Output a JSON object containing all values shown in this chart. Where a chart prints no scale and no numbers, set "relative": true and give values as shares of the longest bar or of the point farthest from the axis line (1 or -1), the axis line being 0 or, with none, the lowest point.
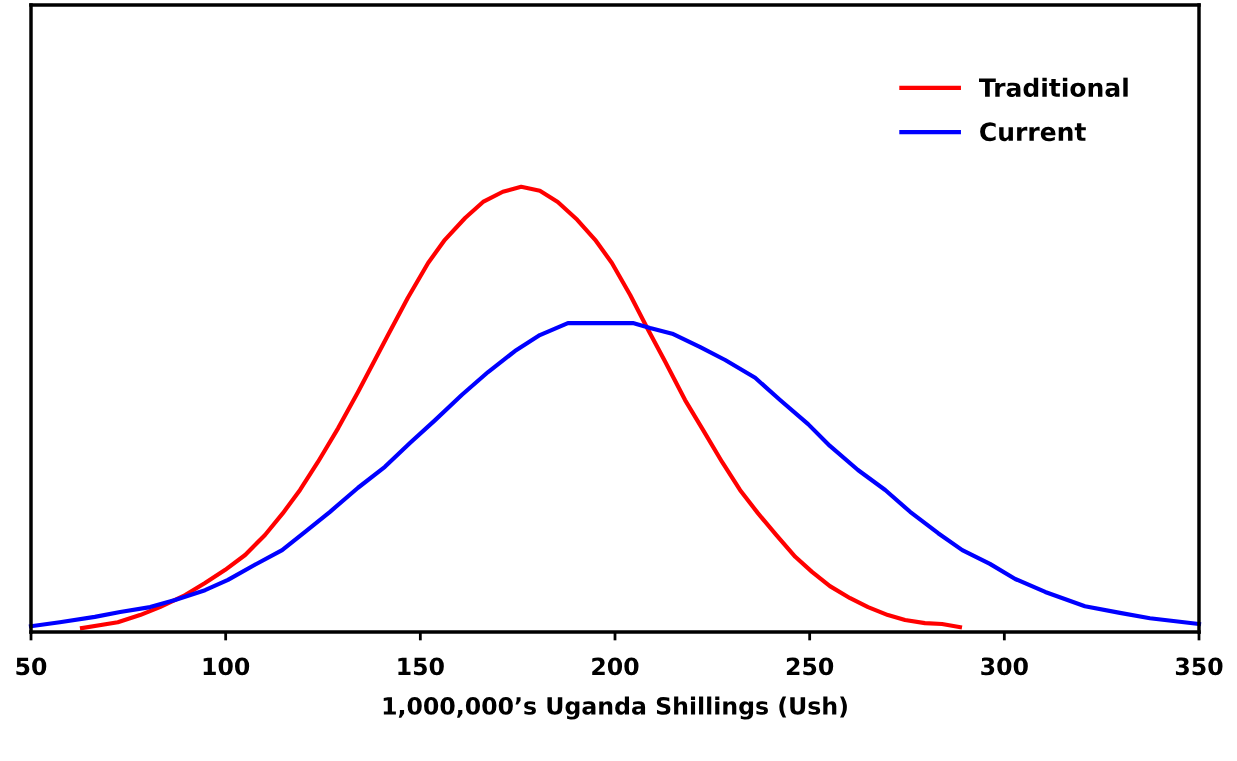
{
  "chart_data": {
    "type": "line",
    "xlabel": "1,000,000’s Uganda Shillings (Ush)",
    "relative": true,
    "xlim": [
      50,
      350
    ],
    "xticks": [
      50,
      100,
      150,
      200,
      250,
      300,
      350
    ],
    "legend": "top right",
    "grid": false,
    "marker": "none",
    "line_style": "solid",
    "series": [
      {
        "name": "Traditional",
        "color": "#ff0000",
        "x": [
          63.1,
          72.3,
          78,
          83.1,
          89.6,
          94.7,
          99.8,
          105,
          110.1,
          114.7,
          119.1,
          123.7,
          128.9,
          134,
          141.7,
          146.8,
          152,
          156.3,
          161.5,
          166.1,
          171.2,
          175.9,
          180.7,
          185.3,
          190.3,
          194.9,
          199.2,
          203.9,
          208.5,
          212.9,
          218,
          222.6,
          227.5,
          232.1,
          236.7,
          241.4,
          246.3,
          250.6,
          255.2,
          260.4,
          265,
          270.1,
          274.5,
          279.6,
          284,
          288.6
        ],
        "values": [
          0.009,
          0.022,
          0.038,
          0.056,
          0.083,
          0.11,
          0.139,
          0.173,
          0.218,
          0.267,
          0.319,
          0.382,
          0.458,
          0.539,
          0.667,
          0.751,
          0.829,
          0.881,
          0.93,
          0.966,
          0.989,
          1,
          0.991,
          0.966,
          0.926,
          0.881,
          0.829,
          0.757,
          0.679,
          0.607,
          0.521,
          0.454,
          0.382,
          0.319,
          0.267,
          0.218,
          0.169,
          0.135,
          0.103,
          0.076,
          0.056,
          0.038,
          0.027,
          0.02,
          0.018,
          0.011
        ]
      },
      {
        "name": "Current",
        "color": "#0000ff",
        "x": [
          50,
          57.4,
          66.4,
          72.9,
          80.6,
          87,
          94.7,
          100.6,
          107.5,
          114.5,
          120.4,
          126.8,
          134,
          140.9,
          147.4,
          153.8,
          160.7,
          167.4,
          174.3,
          180.7,
          187.9,
          198.2,
          204.6,
          209,
          214.7,
          221.9,
          228.3,
          236,
          242.4,
          249.6,
          255.2,
          262.4,
          269.4,
          275.8,
          283,
          289.2,
          296.3,
          302.8,
          310.5,
          320.7,
          329.7,
          337.4,
          350
        ],
        "values": [
          0.013,
          0.022,
          0.034,
          0.045,
          0.056,
          0.072,
          0.094,
          0.117,
          0.151,
          0.184,
          0.225,
          0.27,
          0.324,
          0.371,
          0.425,
          0.476,
          0.533,
          0.584,
          0.631,
          0.667,
          0.694,
          0.694,
          0.694,
          0.683,
          0.67,
          0.64,
          0.611,
          0.571,
          0.521,
          0.467,
          0.418,
          0.364,
          0.319,
          0.27,
          0.222,
          0.184,
          0.153,
          0.119,
          0.09,
          0.058,
          0.043,
          0.031,
          0.018
        ]
      }
    ]
  }
}
